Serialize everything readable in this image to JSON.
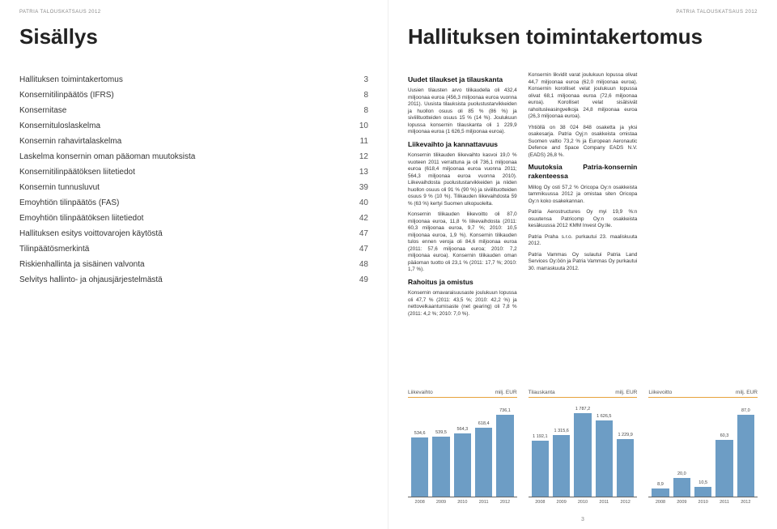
{
  "runningHeader": "PATRIA TALOUSKATSAUS 2012",
  "left": {
    "title": "Sisällys",
    "toc": [
      {
        "label": "Hallituksen toimintakertomus",
        "page": "3"
      },
      {
        "label": "Konsernitilinpäätös (IFRS)",
        "page": "8"
      },
      {
        "label": "Konsernitase",
        "page": "8"
      },
      {
        "label": "Konsernituloslaskelma",
        "page": "10"
      },
      {
        "label": "Konsernin rahavirtalaskelma",
        "page": "11"
      },
      {
        "label": "Laskelma konsernin oman pääoman muutoksista",
        "page": "12"
      },
      {
        "label": "Konsernitilinpäätöksen liitetiedot",
        "page": "13"
      },
      {
        "label": "Konsernin tunnusluvut",
        "page": "39"
      },
      {
        "label": "Emoyhtiön tilinpäätös (FAS)",
        "page": "40"
      },
      {
        "label": "Emoyhtiön tilinpäätöksen liitetiedot",
        "page": "42"
      },
      {
        "label": "Hallituksen esitys voittovarojen käytöstä",
        "page": "47"
      },
      {
        "label": "Tilinpäätösmerkintä",
        "page": "47"
      },
      {
        "label": "Riskienhallinta ja sisäinen valvonta",
        "page": "48"
      },
      {
        "label": "Selvitys hallinto- ja ohjausjärjestelmästä",
        "page": "49"
      }
    ]
  },
  "right": {
    "title": "Hallituksen toimintakertomus",
    "sections": [
      {
        "head": "Uudet tilaukset ja tilauskanta",
        "paras": [
          "Uusien tilausten arvo tilikaudella oli 432,4 miljoonaa euroa (456,3 miljoonaa euroa vuonna 2011). Uusista tilauksista puolustustarvikkeiden ja huollon osuus oli 85 % (86 %) ja siviilituotteiden osuus 15 % (14 %). Joulukuun lopussa konsernin tilauskanta oli 1 229,9 miljoonaa euroa (1 626,5 miljoonaa euroa)."
        ]
      },
      {
        "head": "Liikevaihto ja kannattavuus",
        "paras": [
          "Konsernin tilikauden liikevaihto kasvoi 19,0 % vuoteen 2011 verrattuna ja oli 736,1 miljoonaa euroa (618,4 miljoonaa euroa vuonna 2011; 564,3 miljoonaa euroa vuonna 2010). Liikevaihdosta puolustustarvikkeiden ja niiden huollon osuus oli 91 % (90 %) ja siviilituotteiden osuus 9 % (10 %). Tilikauden liikevaihdosta 59 % (63 %) kertyi Suomen ulkopuolelta.",
          "Konsernin tilikauden liikevoitto oli 87,0 miljoonaa euroa, 11,8 % liikevaihdosta (2011: 60,3 miljoonaa euroa, 9,7 %; 2010: 10,5 miljoonaa euroa, 1,9 %). Konsernin tilikauden tulos ennen veroja oli 84,6 miljoonaa euroa (2011: 57,6 miljoonaa euroa; 2010: 7,2 miljoonaa euroa). Konsernin tilikauden oman pääoman tuotto oli 23,1 % (2011: 17,7 %; 2010: 1,7 %)."
        ]
      },
      {
        "head": "Rahoitus ja omistus",
        "paras": [
          "Konsernin omavaraisuusaste joulukuun lopussa oli 47,7 % (2011: 43,5 %; 2010: 42,2 %) ja nettovelkaantumisaste (net gearing) oli 7,8 % (2011: 4,2 %; 2010: 7,0 %).",
          "Konsernin likvidit varat joulukuun lopussa olivat 44,7 miljoonaa euroa (62,0 miljoonaa euroa). Konsernin korolliset velat joulukuun lopussa olivat 68,1 miljoonaa euroa (72,6 miljoonaa euroa). Korolliset velat sisälsivät rahoitusleasingvelkoja 24,8 miljoonaa euroa (26,3 miljoonaa euroa).",
          "Yhtiöllä on 38 024 848 osaketta ja yksi osakesarja. Patria Oyj:n osakkeista omistaa Suomen valtio 73,2 % ja European Aeronautic Defence and Space Company EADS N.V. (EADS) 26,8 %."
        ]
      },
      {
        "head": "Muutoksia Patria-konsernin rakenteessa",
        "paras": [
          "Millog Oy osti 57,2 % Oricopa Oy:n osakkeista tammikuussa 2012 ja omistaa siten Oricopa Oy:n koko osakekannan.",
          "Patria Aerostructures Oy myi 19,9 %:n osuutensa Patricomp Oy:n osakkeista kesäkuussa 2012 KMM Invest Oy:lle.",
          "Patria Praha s.r.o. purkautui 23. maaliskuuta 2012.",
          "Patria Vammas Oy sulautui Patria Land Services Oy:öön ja Patria Vammas Oy purkautui 30. marraskuuta 2012."
        ]
      }
    ],
    "charts": [
      {
        "title": "Liikevaihto",
        "unit": "milj. EUR",
        "color": "#6d9dc5",
        "years": [
          "2008",
          "2009",
          "2010",
          "2011",
          "2012"
        ],
        "values": [
          534.6,
          539.5,
          564.3,
          618.4,
          736.1
        ],
        "ymax": 800
      },
      {
        "title": "Tilauskanta",
        "unit": "milj. EUR",
        "color": "#6d9dc5",
        "years": [
          "2008",
          "2009",
          "2010",
          "2011",
          "2012"
        ],
        "values": [
          1192.1,
          1315.6,
          1787.2,
          1626.5,
          1229.9
        ],
        "ymax": 1900
      },
      {
        "title": "Liikevoitto",
        "unit": "milj. EUR",
        "color": "#6d9dc5",
        "years": [
          "2008",
          "2009",
          "2010",
          "2011",
          "2012"
        ],
        "values": [
          8.9,
          20.0,
          10.5,
          60.3,
          87.0
        ],
        "ymax": 95
      }
    ],
    "pageNumber": "3"
  }
}
